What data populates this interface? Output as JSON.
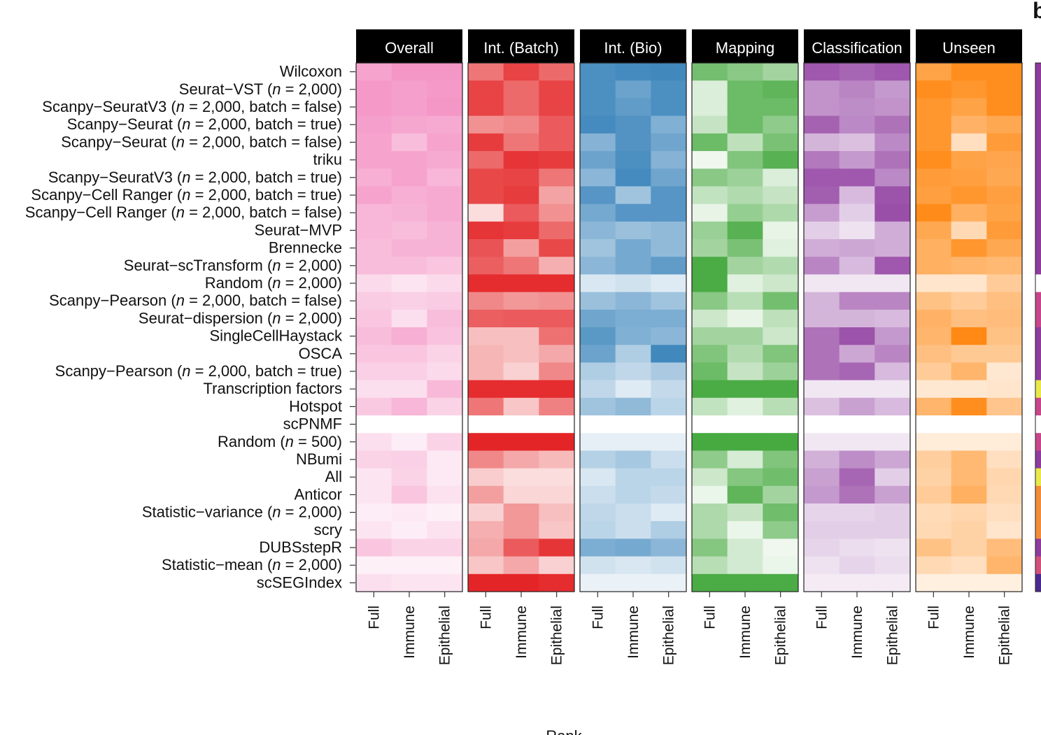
{
  "chart_data": {
    "type": "heatmap",
    "title": "",
    "xlabel": "Rank",
    "panel_letter": "b",
    "columns": [
      "Full",
      "Immune",
      "Epithelial"
    ],
    "color_scale": {
      "direction": "light = low rank value shown pale, dark = saturated"
    },
    "facets": [
      {
        "name": "Overall",
        "color": "#f06db0"
      },
      {
        "name": "Int. (Batch)",
        "color": "#e31a1c"
      },
      {
        "name": "Int. (Bio)",
        "color": "#2c7bb6"
      },
      {
        "name": "Mapping",
        "color": "#33a02c"
      },
      {
        "name": "Classification",
        "color": "#8e3b9e"
      },
      {
        "name": "Unseen",
        "color": "#ff7f00"
      }
    ],
    "methods": [
      {
        "label": "Wilcoxon",
        "paren": ""
      },
      {
        "label": "Seurat−VST",
        "paren": "n = 2,000"
      },
      {
        "label": "Scanpy−SeuratV3",
        "paren": "n = 2,000, batch = false"
      },
      {
        "label": "Scanpy−Seurat",
        "paren": "n = 2,000, batch = true"
      },
      {
        "label": "Scanpy−Seurat",
        "paren": "n = 2,000, batch = false"
      },
      {
        "label": "triku",
        "paren": ""
      },
      {
        "label": "Scanpy−SeuratV3",
        "paren": "n = 2,000, batch = true"
      },
      {
        "label": "Scanpy−Cell Ranger",
        "paren": "n = 2,000, batch = true"
      },
      {
        "label": "Scanpy−Cell Ranger",
        "paren": "n = 2,000, batch = false"
      },
      {
        "label": "Seurat−MVP",
        "paren": ""
      },
      {
        "label": "Brennecke",
        "paren": ""
      },
      {
        "label": "Seurat−scTransform",
        "paren": "n = 2,000"
      },
      {
        "label": "Random",
        "paren": "n = 2,000"
      },
      {
        "label": "Scanpy−Pearson",
        "paren": "n = 2,000, batch = false"
      },
      {
        "label": "Seurat−dispersion",
        "paren": "n = 2,000"
      },
      {
        "label": "SingleCellHaystack",
        "paren": ""
      },
      {
        "label": "OSCA",
        "paren": ""
      },
      {
        "label": "Scanpy−Pearson",
        "paren": "n = 2,000, batch = true"
      },
      {
        "label": "Transcription factors",
        "paren": ""
      },
      {
        "label": "Hotspot",
        "paren": ""
      },
      {
        "label": "scPNMF",
        "paren": ""
      },
      {
        "label": "Random",
        "paren": "n = 500"
      },
      {
        "label": "NBumi",
        "paren": ""
      },
      {
        "label": "All",
        "paren": ""
      },
      {
        "label": "Anticor",
        "paren": ""
      },
      {
        "label": "Statistic−variance",
        "paren": "n = 2,000"
      },
      {
        "label": "scry",
        "paren": ""
      },
      {
        "label": "DUBSstepR",
        "paren": ""
      },
      {
        "label": "Statistic−mean",
        "paren": "n = 2,000"
      },
      {
        "label": "scSEGIndex",
        "paren": ""
      }
    ],
    "values": {
      "Overall": [
        [
          0.62,
          0.72,
          0.72
        ],
        [
          0.7,
          0.65,
          0.7
        ],
        [
          0.7,
          0.65,
          0.72
        ],
        [
          0.65,
          0.6,
          0.58
        ],
        [
          0.62,
          0.45,
          0.62
        ],
        [
          0.62,
          0.62,
          0.58
        ],
        [
          0.55,
          0.62,
          0.5
        ],
        [
          0.62,
          0.55,
          0.58
        ],
        [
          0.5,
          0.52,
          0.58
        ],
        [
          0.5,
          0.45,
          0.52
        ],
        [
          0.45,
          0.52,
          0.52
        ],
        [
          0.45,
          0.45,
          0.4
        ],
        [
          0.25,
          0.18,
          0.25
        ],
        [
          0.35,
          0.32,
          0.35
        ],
        [
          0.4,
          0.22,
          0.45
        ],
        [
          0.45,
          0.55,
          0.42
        ],
        [
          0.4,
          0.4,
          0.3
        ],
        [
          0.32,
          0.32,
          0.25
        ],
        [
          0.22,
          0.22,
          0.48
        ],
        [
          0.38,
          0.5,
          0.3
        ],
        [
          0.0,
          0.0,
          0.0
        ],
        [
          0.22,
          0.12,
          0.3
        ],
        [
          0.3,
          0.32,
          0.15
        ],
        [
          0.18,
          0.3,
          0.15
        ],
        [
          0.18,
          0.4,
          0.2
        ],
        [
          0.12,
          0.15,
          0.1
        ],
        [
          0.18,
          0.12,
          0.2
        ],
        [
          0.4,
          0.3,
          0.3
        ],
        [
          0.1,
          0.1,
          0.1
        ],
        [
          0.22,
          0.18,
          0.18
        ]
      ],
      "Int. (Batch)": [
        [
          0.6,
          0.82,
          0.65
        ],
        [
          0.82,
          0.65,
          0.82
        ],
        [
          0.82,
          0.65,
          0.82
        ],
        [
          0.48,
          0.52,
          0.72
        ],
        [
          0.85,
          0.6,
          0.72
        ],
        [
          0.65,
          0.88,
          0.85
        ],
        [
          0.8,
          0.82,
          0.6
        ],
        [
          0.8,
          0.85,
          0.4
        ],
        [
          0.15,
          0.72,
          0.48
        ],
        [
          0.88,
          0.85,
          0.65
        ],
        [
          0.75,
          0.42,
          0.8
        ],
        [
          0.7,
          0.6,
          0.35
        ],
        [
          0.92,
          0.92,
          0.92
        ],
        [
          0.52,
          0.45,
          0.48
        ],
        [
          0.7,
          0.72,
          0.72
        ],
        [
          0.28,
          0.28,
          0.62
        ],
        [
          0.32,
          0.28,
          0.38
        ],
        [
          0.32,
          0.2,
          0.52
        ],
        [
          0.92,
          0.92,
          0.92
        ],
        [
          0.6,
          0.25,
          0.55
        ],
        [
          0.0,
          0.0,
          0.0
        ],
        [
          0.95,
          0.95,
          0.95
        ],
        [
          0.52,
          0.38,
          0.3
        ],
        [
          0.22,
          0.15,
          0.15
        ],
        [
          0.42,
          0.18,
          0.18
        ],
        [
          0.2,
          0.45,
          0.28
        ],
        [
          0.35,
          0.45,
          0.25
        ],
        [
          0.38,
          0.72,
          0.88
        ],
        [
          0.25,
          0.38,
          0.2
        ],
        [
          0.95,
          0.95,
          0.92
        ]
      ],
      "Int. (Bio)": [
        [
          0.85,
          0.88,
          0.9
        ],
        [
          0.85,
          0.7,
          0.85
        ],
        [
          0.85,
          0.75,
          0.85
        ],
        [
          0.88,
          0.82,
          0.6
        ],
        [
          0.58,
          0.82,
          0.68
        ],
        [
          0.7,
          0.85,
          0.58
        ],
        [
          0.55,
          0.88,
          0.68
        ],
        [
          0.8,
          0.45,
          0.8
        ],
        [
          0.65,
          0.8,
          0.8
        ],
        [
          0.55,
          0.48,
          0.52
        ],
        [
          0.45,
          0.65,
          0.52
        ],
        [
          0.55,
          0.65,
          0.75
        ],
        [
          0.18,
          0.22,
          0.15
        ],
        [
          0.48,
          0.55,
          0.45
        ],
        [
          0.68,
          0.62,
          0.62
        ],
        [
          0.78,
          0.6,
          0.55
        ],
        [
          0.7,
          0.38,
          0.9
        ],
        [
          0.38,
          0.3,
          0.4
        ],
        [
          0.3,
          0.15,
          0.28
        ],
        [
          0.45,
          0.52,
          0.32
        ],
        [
          0.0,
          0.0,
          0.0
        ],
        [
          0.12,
          0.12,
          0.12
        ],
        [
          0.35,
          0.42,
          0.25
        ],
        [
          0.18,
          0.32,
          0.32
        ],
        [
          0.25,
          0.32,
          0.28
        ],
        [
          0.3,
          0.25,
          0.15
        ],
        [
          0.32,
          0.25,
          0.38
        ],
        [
          0.62,
          0.65,
          0.55
        ],
        [
          0.22,
          0.18,
          0.22
        ],
        [
          0.1,
          0.1,
          0.1
        ]
      ],
      "Mapping": [
        [
          0.68,
          0.58,
          0.45
        ],
        [
          0.18,
          0.72,
          0.78
        ],
        [
          0.18,
          0.72,
          0.72
        ],
        [
          0.28,
          0.72,
          0.55
        ],
        [
          0.72,
          0.32,
          0.65
        ],
        [
          0.08,
          0.62,
          0.82
        ],
        [
          0.58,
          0.48,
          0.18
        ],
        [
          0.3,
          0.38,
          0.28
        ],
        [
          0.12,
          0.52,
          0.4
        ],
        [
          0.5,
          0.82,
          0.12
        ],
        [
          0.45,
          0.65,
          0.15
        ],
        [
          0.88,
          0.45,
          0.38
        ],
        [
          0.88,
          0.15,
          0.25
        ],
        [
          0.58,
          0.35,
          0.68
        ],
        [
          0.25,
          0.12,
          0.32
        ],
        [
          0.45,
          0.45,
          0.25
        ],
        [
          0.62,
          0.38,
          0.62
        ],
        [
          0.72,
          0.28,
          0.48
        ],
        [
          0.88,
          0.88,
          0.88
        ],
        [
          0.3,
          0.15,
          0.35
        ],
        [
          0.0,
          0.0,
          0.0
        ],
        [
          0.9,
          0.9,
          0.9
        ],
        [
          0.55,
          0.2,
          0.62
        ],
        [
          0.25,
          0.6,
          0.7
        ],
        [
          0.1,
          0.78,
          0.45
        ],
        [
          0.4,
          0.28,
          0.7
        ],
        [
          0.4,
          0.1,
          0.55
        ],
        [
          0.6,
          0.22,
          0.08
        ],
        [
          0.35,
          0.22,
          0.1
        ],
        [
          0.88,
          0.88,
          0.88
        ]
      ],
      "Classification": [
        [
          0.85,
          0.78,
          0.85
        ],
        [
          0.55,
          0.62,
          0.52
        ],
        [
          0.55,
          0.58,
          0.55
        ],
        [
          0.8,
          0.6,
          0.72
        ],
        [
          0.38,
          0.32,
          0.6
        ],
        [
          0.68,
          0.52,
          0.72
        ],
        [
          0.85,
          0.85,
          0.6
        ],
        [
          0.82,
          0.35,
          0.88
        ],
        [
          0.5,
          0.25,
          0.9
        ],
        [
          0.25,
          0.15,
          0.42
        ],
        [
          0.42,
          0.45,
          0.42
        ],
        [
          0.62,
          0.35,
          0.85
        ],
        [
          0.12,
          0.12,
          0.12
        ],
        [
          0.38,
          0.62,
          0.62
        ],
        [
          0.38,
          0.38,
          0.35
        ],
        [
          0.72,
          0.88,
          0.52
        ],
        [
          0.72,
          0.45,
          0.62
        ],
        [
          0.72,
          0.78,
          0.35
        ],
        [
          0.12,
          0.12,
          0.12
        ],
        [
          0.32,
          0.48,
          0.35
        ],
        [
          0.0,
          0.0,
          0.0
        ],
        [
          0.12,
          0.12,
          0.12
        ],
        [
          0.4,
          0.58,
          0.45
        ],
        [
          0.48,
          0.78,
          0.25
        ],
        [
          0.52,
          0.72,
          0.48
        ],
        [
          0.22,
          0.22,
          0.25
        ],
        [
          0.25,
          0.25,
          0.25
        ],
        [
          0.22,
          0.18,
          0.15
        ],
        [
          0.15,
          0.22,
          0.18
        ],
        [
          0.1,
          0.1,
          0.1
        ]
      ],
      "Unseen": [
        [
          0.72,
          0.88,
          0.88
        ],
        [
          0.88,
          0.82,
          0.88
        ],
        [
          0.82,
          0.72,
          0.88
        ],
        [
          0.82,
          0.6,
          0.68
        ],
        [
          0.82,
          0.25,
          0.78
        ],
        [
          0.88,
          0.72,
          0.7
        ],
        [
          0.78,
          0.75,
          0.68
        ],
        [
          0.75,
          0.82,
          0.75
        ],
        [
          0.9,
          0.62,
          0.72
        ],
        [
          0.68,
          0.3,
          0.78
        ],
        [
          0.62,
          0.82,
          0.68
        ],
        [
          0.62,
          0.58,
          0.55
        ],
        [
          0.2,
          0.2,
          0.4
        ],
        [
          0.48,
          0.4,
          0.5
        ],
        [
          0.6,
          0.5,
          0.52
        ],
        [
          0.58,
          0.92,
          0.48
        ],
        [
          0.5,
          0.42,
          0.42
        ],
        [
          0.4,
          0.58,
          0.18
        ],
        [
          0.18,
          0.18,
          0.2
        ],
        [
          0.58,
          0.88,
          0.45
        ],
        [
          0.0,
          0.0,
          0.0
        ],
        [
          0.15,
          0.15,
          0.15
        ],
        [
          0.38,
          0.55,
          0.25
        ],
        [
          0.35,
          0.55,
          0.32
        ],
        [
          0.4,
          0.62,
          0.3
        ],
        [
          0.28,
          0.32,
          0.25
        ],
        [
          0.3,
          0.35,
          0.2
        ],
        [
          0.48,
          0.35,
          0.52
        ],
        [
          0.3,
          0.25,
          0.58
        ],
        [
          0.12,
          0.12,
          0.12
        ]
      ]
    },
    "legend_strip_colors": [
      "#8e3b9e",
      "#8e3b9e",
      "#8e3b9e",
      "#8e3b9e",
      "#8e3b9e",
      "#8e3b9e",
      "#8e3b9e",
      "#8e3b9e",
      "#8e3b9e",
      "#8e3b9e",
      "#8e3b9e",
      "#8e3b9e",
      "#ffffff",
      "#c7468b",
      "#c7468b",
      "#8e3b9e",
      "#8e3b9e",
      "#8e3b9e",
      "#e8e84a",
      "#c7468b",
      "#ffffff",
      "#c7468b",
      "#8e3b9e",
      "#e8e84a",
      "#f28b3a",
      "#f28b3a",
      "#f28b3a",
      "#8e3b9e",
      "#d0527a",
      "#4a2a8e"
    ]
  }
}
